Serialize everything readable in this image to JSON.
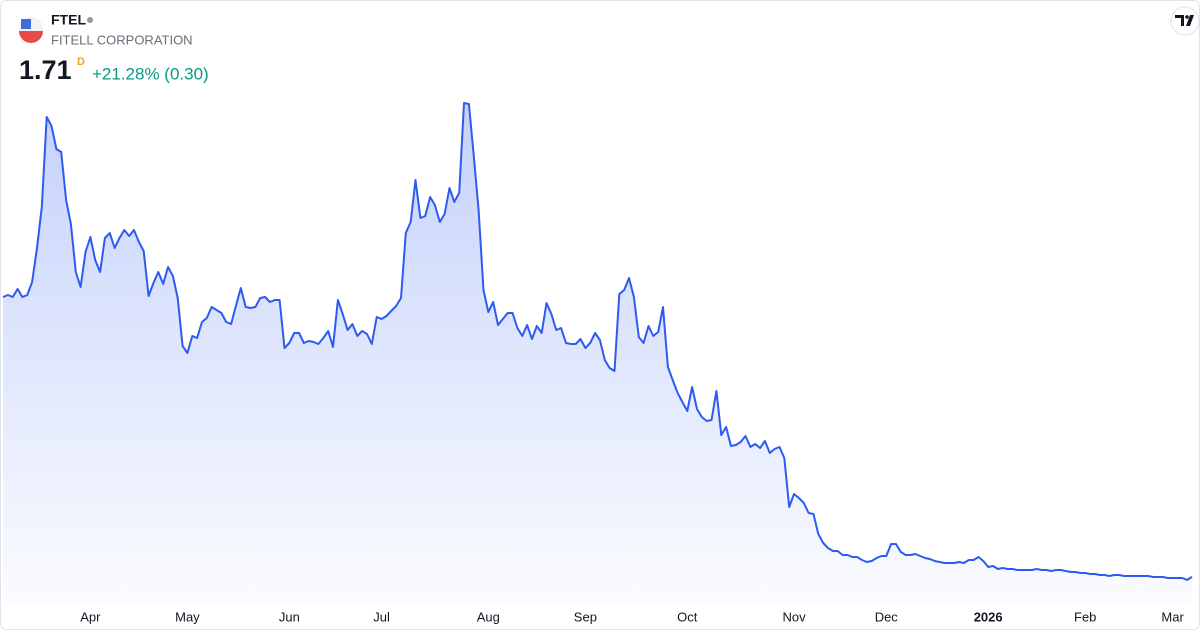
{
  "header": {
    "symbol": "FTEL",
    "name": "FITELL CORPORATION",
    "price": "1.71",
    "interval": "D",
    "change": "+21.28% (0.30)"
  },
  "chart_data": {
    "type": "area",
    "color": "#2e5bef",
    "grid": false,
    "ylim": [
      0,
      50
    ],
    "categories": [
      null,
      null,
      null,
      null,
      null,
      null,
      null,
      null,
      null,
      null,
      null,
      null,
      null,
      null,
      null,
      null,
      null,
      null,
      "Apr",
      null,
      null,
      null,
      null,
      null,
      null,
      null,
      null,
      null,
      null,
      null,
      null,
      null,
      null,
      null,
      null,
      null,
      null,
      null,
      "May",
      null,
      null,
      null,
      null,
      null,
      null,
      null,
      null,
      null,
      null,
      null,
      null,
      null,
      null,
      null,
      null,
      null,
      null,
      null,
      null,
      "Jun",
      null,
      null,
      null,
      null,
      null,
      null,
      null,
      null,
      null,
      null,
      null,
      null,
      null,
      null,
      null,
      null,
      null,
      null,
      "Jul",
      null,
      null,
      null,
      null,
      null,
      null,
      null,
      null,
      null,
      null,
      null,
      null,
      null,
      null,
      null,
      null,
      null,
      null,
      null,
      null,
      null,
      "Aug",
      null,
      null,
      null,
      null,
      null,
      null,
      null,
      null,
      null,
      null,
      null,
      null,
      null,
      null,
      null,
      null,
      null,
      null,
      null,
      "Sep",
      null,
      null,
      null,
      null,
      null,
      null,
      null,
      null,
      null,
      null,
      null,
      null,
      null,
      null,
      null,
      null,
      null,
      null,
      null,
      null,
      "Oct",
      null,
      null,
      null,
      null,
      null,
      null,
      null,
      null,
      null,
      null,
      null,
      null,
      null,
      null,
      null,
      null,
      null,
      null,
      null,
      null,
      null,
      "Nov",
      null,
      null,
      null,
      null,
      null,
      null,
      null,
      null,
      null,
      null,
      null,
      null,
      null,
      null,
      null,
      null,
      null,
      null,
      "Dec",
      null,
      null,
      null,
      null,
      null,
      null,
      null,
      null,
      null,
      null,
      null,
      null,
      null,
      null,
      null,
      null,
      null,
      null,
      null,
      null,
      "2026",
      null,
      null,
      null,
      null,
      null,
      null,
      null,
      null,
      null,
      null,
      null,
      null,
      null,
      null,
      null,
      null,
      null,
      null,
      null,
      "Feb",
      null,
      null,
      null,
      null,
      null,
      null,
      null,
      null,
      null,
      null,
      null,
      null,
      null,
      null,
      null,
      null,
      null,
      "Mar",
      null,
      null,
      null,
      null
    ],
    "values": [
      29.7,
      29.9,
      29.7,
      30.5,
      29.7,
      29.9,
      31.2,
      34.6,
      38.7,
      47.7,
      46.8,
      44.5,
      44.2,
      39.4,
      37.0,
      32.2,
      30.7,
      34.2,
      35.7,
      33.4,
      32.2,
      35.6,
      36.1,
      34.6,
      35.6,
      36.4,
      35.8,
      36.4,
      35.2,
      34.3,
      29.8,
      31.1,
      32.2,
      31.0,
      32.7,
      31.8,
      29.6,
      24.8,
      24.1,
      25.8,
      25.6,
      27.2,
      27.6,
      28.7,
      28.4,
      28.1,
      27.2,
      27.0,
      28.8,
      30.6,
      28.7,
      28.6,
      28.7,
      29.6,
      29.7,
      29.2,
      29.4,
      29.4,
      24.6,
      25.1,
      26.1,
      26.1,
      25.1,
      25.3,
      25.2,
      25.0,
      25.6,
      26.3,
      24.7,
      29.4,
      28.0,
      26.4,
      27.0,
      25.8,
      26.3,
      26.0,
      25.0,
      27.7,
      27.5,
      27.8,
      28.3,
      28.8,
      29.6,
      36.1,
      37.2,
      41.4,
      37.6,
      37.8,
      39.7,
      38.9,
      37.2,
      38.0,
      40.6,
      39.2,
      40.1,
      49.1,
      49.0,
      43.9,
      38.4,
      30.4,
      28.2,
      29.2,
      26.9,
      27.5,
      28.1,
      28.1,
      26.6,
      25.8,
      26.9,
      25.5,
      26.8,
      26.1,
      29.1,
      28.0,
      26.4,
      26.6,
      25.1,
      25.0,
      25.0,
      25.5,
      24.6,
      25.1,
      26.1,
      25.4,
      23.4,
      22.6,
      22.3,
      30.0,
      30.4,
      31.6,
      29.7,
      25.7,
      25.1,
      26.8,
      25.8,
      26.2,
      28.7,
      22.7,
      21.4,
      20.1,
      19.2,
      18.3,
      20.7,
      18.5,
      17.7,
      17.3,
      17.4,
      20.3,
      15.9,
      16.7,
      14.8,
      14.9,
      15.2,
      15.8,
      14.7,
      15.0,
      14.6,
      15.3,
      14.1,
      14.5,
      14.7,
      13.6,
      8.7,
      10.0,
      9.6,
      9.1,
      8.1,
      8.0,
      6.0,
      5.1,
      4.6,
      4.3,
      4.3,
      3.9,
      3.9,
      3.7,
      3.7,
      3.4,
      3.2,
      3.3,
      3.6,
      3.8,
      3.8,
      5.0,
      5.0,
      4.2,
      3.9,
      3.9,
      4.0,
      3.8,
      3.6,
      3.5,
      3.3,
      3.2,
      3.1,
      3.1,
      3.1,
      3.2,
      3.1,
      3.4,
      3.4,
      3.7,
      3.3,
      2.7,
      2.8,
      2.5,
      2.6,
      2.5,
      2.5,
      2.4,
      2.4,
      2.4,
      2.4,
      2.5,
      2.4,
      2.4,
      2.3,
      2.4,
      2.4,
      2.3,
      2.2,
      2.2,
      2.1,
      2.1,
      2.0,
      2.0,
      1.9,
      1.9,
      1.8,
      1.9,
      1.9,
      1.8,
      1.8,
      1.8,
      1.8,
      1.8,
      1.8,
      1.7,
      1.7,
      1.7,
      1.6,
      1.6,
      1.6,
      1.6,
      1.41,
      1.71
    ]
  }
}
